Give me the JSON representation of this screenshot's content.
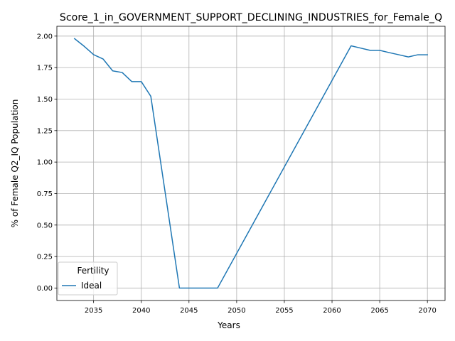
{
  "chart_data": {
    "type": "line",
    "title": "Score_1_in_GOVERNMENT_SUPPORT_DECLINING_INDUSTRIES_for_Female_Q",
    "xlabel": "Years",
    "ylabel": "% of Female Q2_IQ Population",
    "xlim": [
      2031.15,
      2071.85
    ],
    "ylim": [
      -0.099,
      2.078
    ],
    "x_ticks": [
      2035,
      2040,
      2045,
      2050,
      2055,
      2060,
      2065,
      2070
    ],
    "y_ticks": [
      0.0,
      0.25,
      0.5,
      0.75,
      1.0,
      1.25,
      1.5,
      1.75,
      2.0
    ],
    "x_tick_labels": [
      "2035",
      "2040",
      "2045",
      "2050",
      "2055",
      "2060",
      "2065",
      "2070"
    ],
    "y_tick_labels": [
      "0.00",
      "0.25",
      "0.50",
      "0.75",
      "1.00",
      "1.25",
      "1.50",
      "1.75",
      "2.00"
    ],
    "grid": true,
    "legend": {
      "title": "Fertility",
      "placement": "lower-left"
    },
    "series": [
      {
        "name": "Ideal",
        "color": "#1f77b4",
        "x": [
          2033,
          2034,
          2035,
          2036,
          2037,
          2038,
          2039,
          2040,
          2041,
          2044,
          2045,
          2046,
          2047,
          2048,
          2062,
          2063,
          2064,
          2065,
          2066,
          2067,
          2068,
          2069,
          2070
        ],
        "y": [
          1.98,
          1.92,
          1.853,
          1.818,
          1.724,
          1.711,
          1.639,
          1.639,
          1.522,
          0.0,
          0.0,
          0.0,
          0.0,
          0.0,
          1.923,
          1.905,
          1.887,
          1.887,
          1.869,
          1.852,
          1.835,
          1.852,
          1.852
        ]
      }
    ]
  }
}
